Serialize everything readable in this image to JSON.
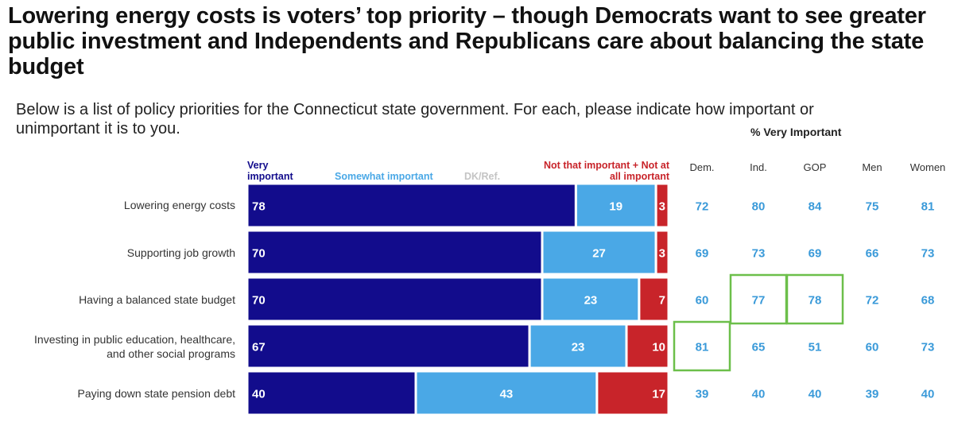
{
  "title": "Lowering energy costs is voters’ top priority – though Democrats want to see greater public investment and Independents and Republicans care about balancing the state budget",
  "subtitle": "Below is a list of policy priorities for the Connecticut state government. For each, please indicate how important or unimportant it is to you.",
  "chart_data": {
    "type": "bar",
    "orientation": "horizontal-stacked-100",
    "categories": [
      "Lowering energy costs",
      "Supporting job growth",
      "Having a balanced state budget",
      "Investing in public education, healthcare, and other social programs",
      "Paying down state pension debt"
    ],
    "series": [
      {
        "name": "Very important",
        "color": "#120c8c",
        "values": [
          78,
          70,
          70,
          67,
          40
        ]
      },
      {
        "name": "Somewhat important",
        "color": "#4aa8e6",
        "values": [
          19,
          27,
          23,
          23,
          43
        ]
      },
      {
        "name": "DK/Ref.",
        "color": "#e3e3e3",
        "values": [
          0,
          0,
          0,
          0,
          0
        ]
      },
      {
        "name": "Not that important + Not at all important",
        "color": "#c8242a",
        "values": [
          3,
          3,
          7,
          10,
          17
        ]
      }
    ],
    "xlim": [
      0,
      100
    ],
    "legend_labels": {
      "very": [
        "Very",
        "important"
      ],
      "somewhat": "Somewhat important",
      "dk": "DK/Ref.",
      "not": [
        "Not that important + Not at",
        "all important"
      ]
    },
    "category_lines": [
      [
        "Lowering energy costs"
      ],
      [
        "Supporting job growth"
      ],
      [
        "Having a balanced state budget"
      ],
      [
        "Investing in public education, healthcare,",
        "and other social programs"
      ],
      [
        "Paying down state pension debt"
      ]
    ]
  },
  "very_important_table": {
    "header": "% Very Important",
    "columns": [
      "Dem.",
      "Ind.",
      "GOP",
      "Men",
      "Women"
    ],
    "rows": [
      [
        72,
        80,
        84,
        75,
        81
      ],
      [
        69,
        73,
        69,
        66,
        73
      ],
      [
        60,
        77,
        78,
        72,
        68
      ],
      [
        81,
        65,
        51,
        60,
        73
      ],
      [
        39,
        40,
        40,
        39,
        40
      ]
    ],
    "highlights": [
      [
        2,
        1
      ],
      [
        2,
        2
      ],
      [
        3,
        0
      ]
    ],
    "value_color": "#3a9ad9",
    "highlight_color": "#6cbf4a"
  }
}
